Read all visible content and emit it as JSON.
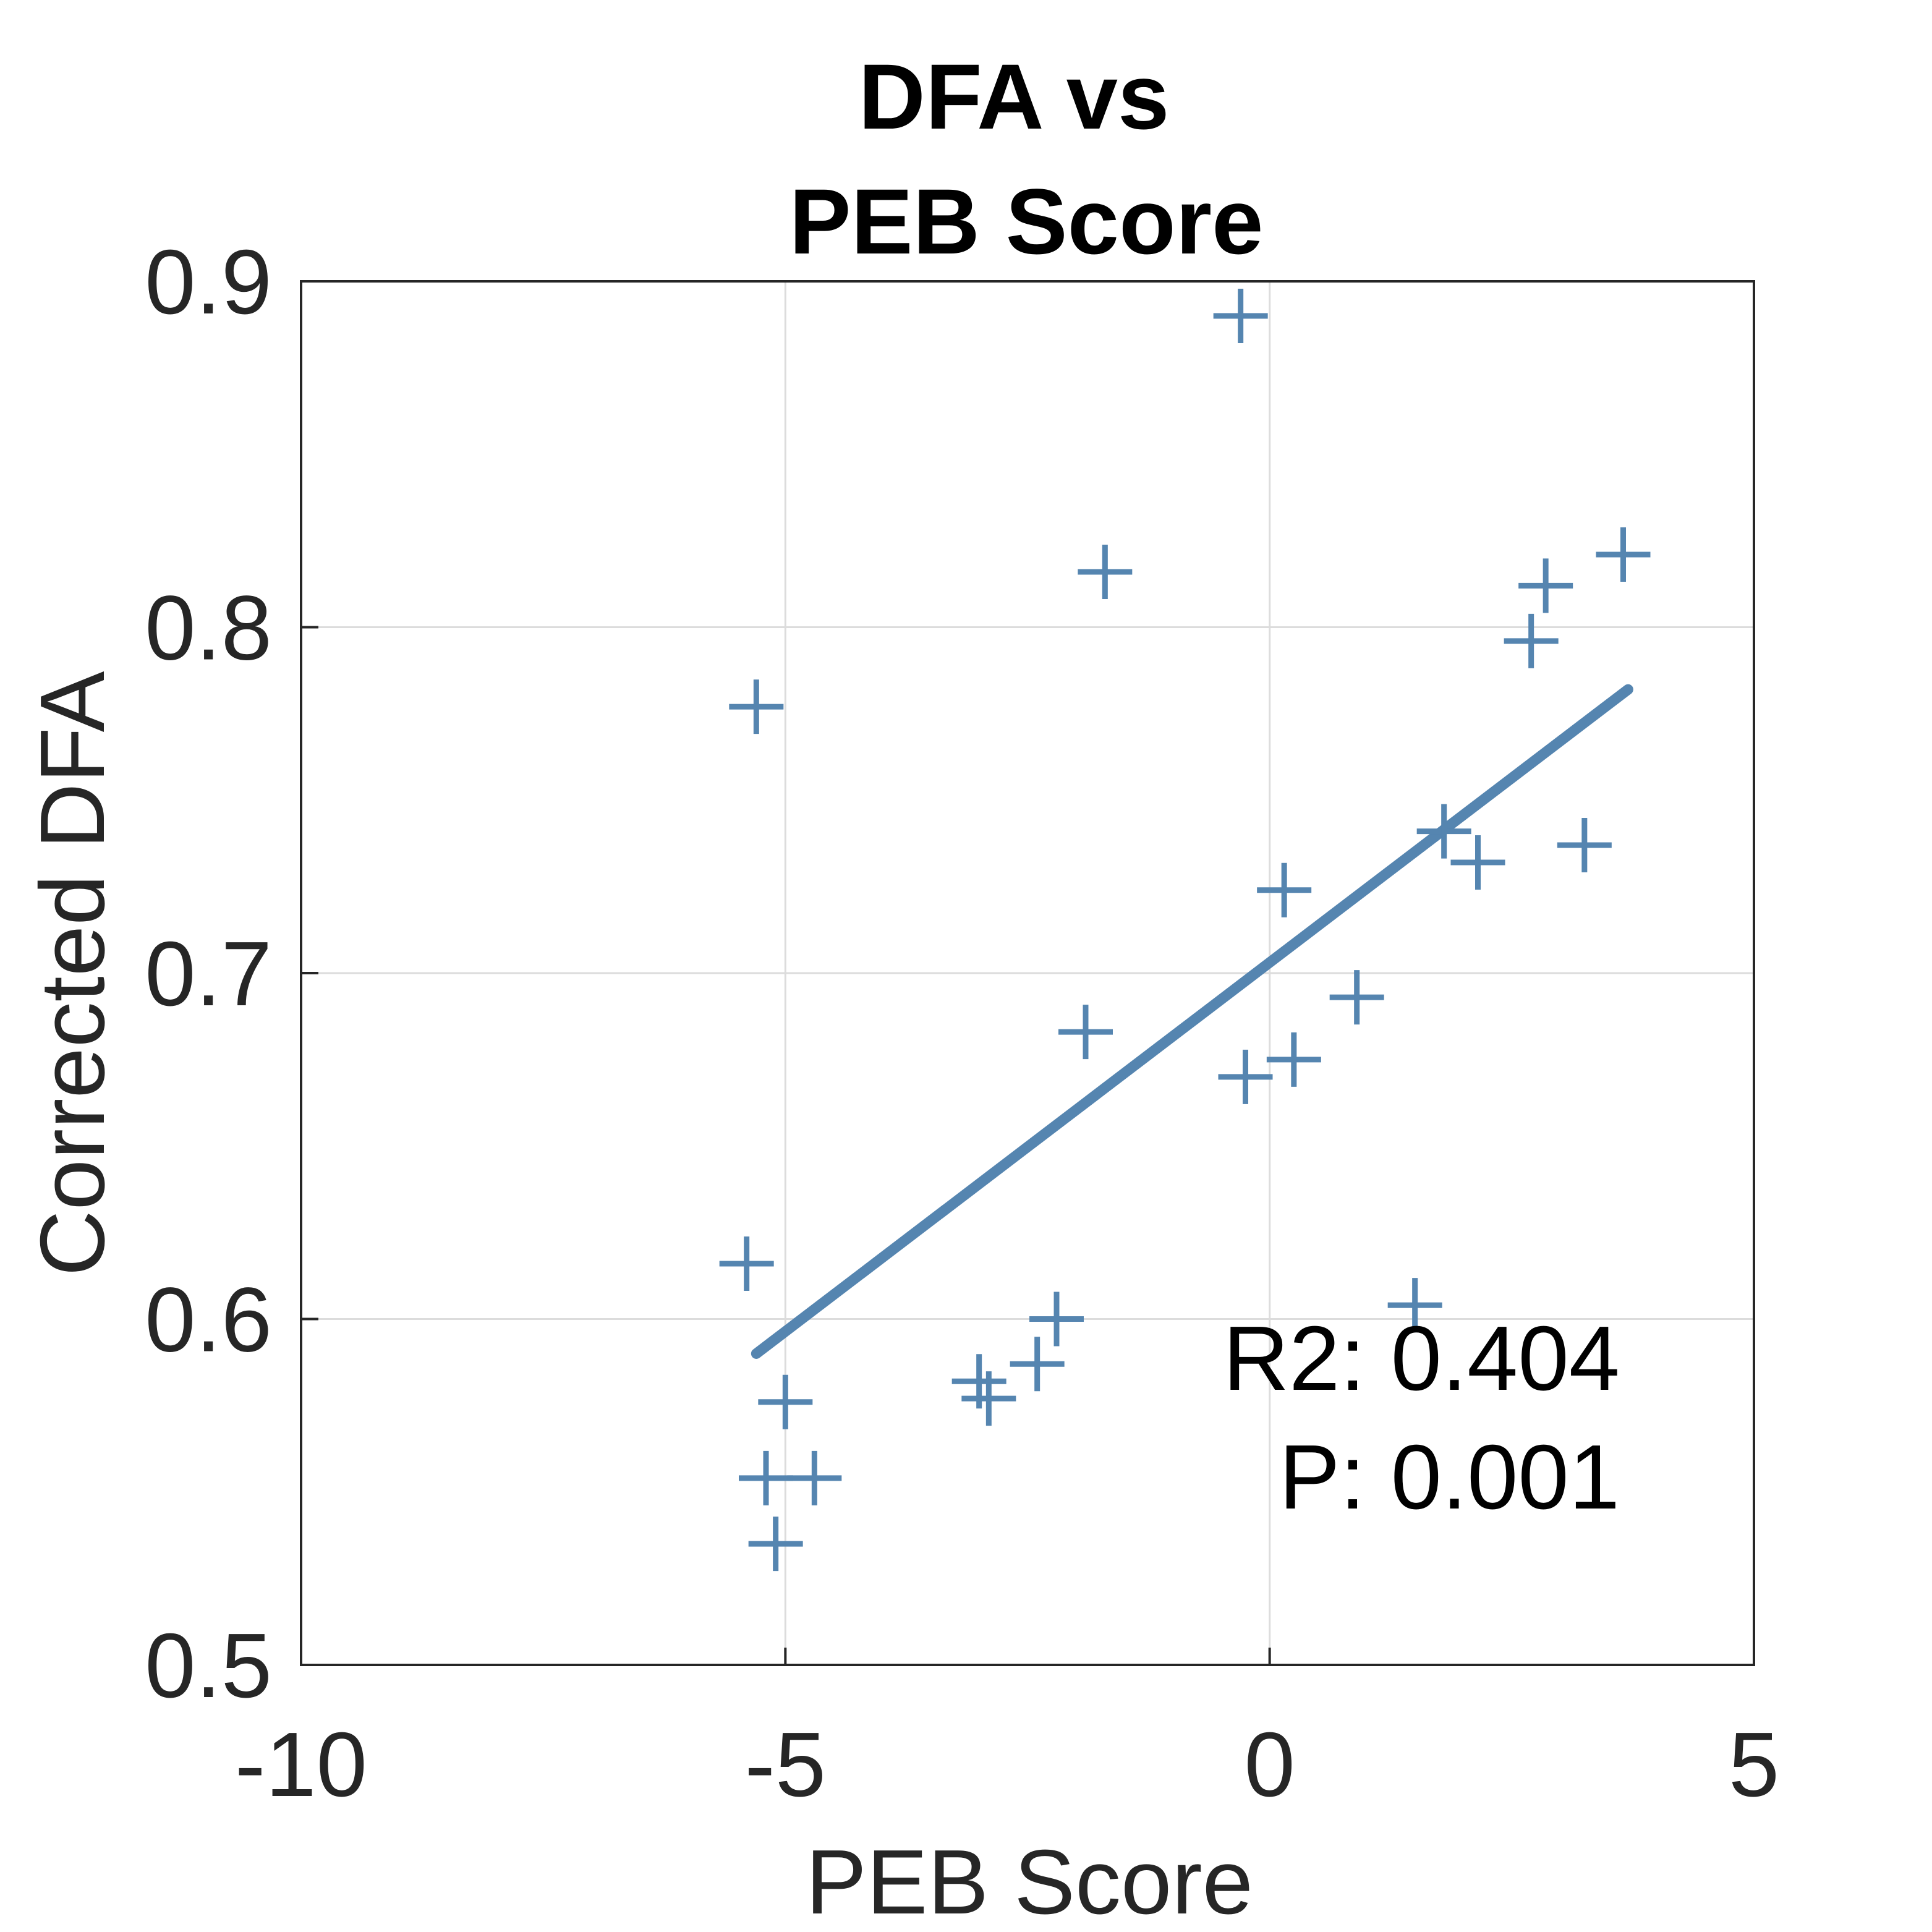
{
  "chart_data": {
    "type": "scatter",
    "title_lines": [
      "DFA vs",
      "PEB Score"
    ],
    "xlabel": "PEB Score",
    "ylabel": "Corrected DFA",
    "xlim": [
      -10,
      5
    ],
    "ylim": [
      0.5,
      0.9
    ],
    "xticks": [
      -10,
      -5,
      0,
      5
    ],
    "xtick_labels": [
      "-10",
      "-5",
      "0",
      "5"
    ],
    "yticks": [
      0.5,
      0.6,
      0.7,
      0.8,
      0.9
    ],
    "ytick_labels": [
      "0.5",
      "0.6",
      "0.7",
      "0.8",
      "0.9"
    ],
    "grid": true,
    "marker": "plus",
    "color": "#5585b0",
    "points": [
      {
        "x": -0.3,
        "y": 0.89
      },
      {
        "x": -1.7,
        "y": 0.816
      },
      {
        "x": 3.65,
        "y": 0.821
      },
      {
        "x": 2.85,
        "y": 0.812
      },
      {
        "x": 2.7,
        "y": 0.796
      },
      {
        "x": -5.3,
        "y": 0.777
      },
      {
        "x": 1.8,
        "y": 0.741
      },
      {
        "x": 2.15,
        "y": 0.732
      },
      {
        "x": 3.25,
        "y": 0.737
      },
      {
        "x": 0.15,
        "y": 0.724
      },
      {
        "x": 0.9,
        "y": 0.693
      },
      {
        "x": -1.9,
        "y": 0.683
      },
      {
        "x": 0.25,
        "y": 0.675
      },
      {
        "x": -0.25,
        "y": 0.67
      },
      {
        "x": -5.4,
        "y": 0.616
      },
      {
        "x": 1.5,
        "y": 0.604
      },
      {
        "x": -2.2,
        "y": 0.6
      },
      {
        "x": -2.4,
        "y": 0.587
      },
      {
        "x": -3.0,
        "y": 0.582
      },
      {
        "x": -2.9,
        "y": 0.577
      },
      {
        "x": -5.0,
        "y": 0.576
      },
      {
        "x": -5.2,
        "y": 0.554
      },
      {
        "x": -4.7,
        "y": 0.554
      },
      {
        "x": -5.1,
        "y": 0.535
      }
    ],
    "fit_line": {
      "x": [
        -5.3,
        3.7
      ],
      "y": [
        0.59,
        0.782
      ]
    },
    "annotations": {
      "r2": "R2: 0.404",
      "p": "P: 0.001"
    }
  }
}
